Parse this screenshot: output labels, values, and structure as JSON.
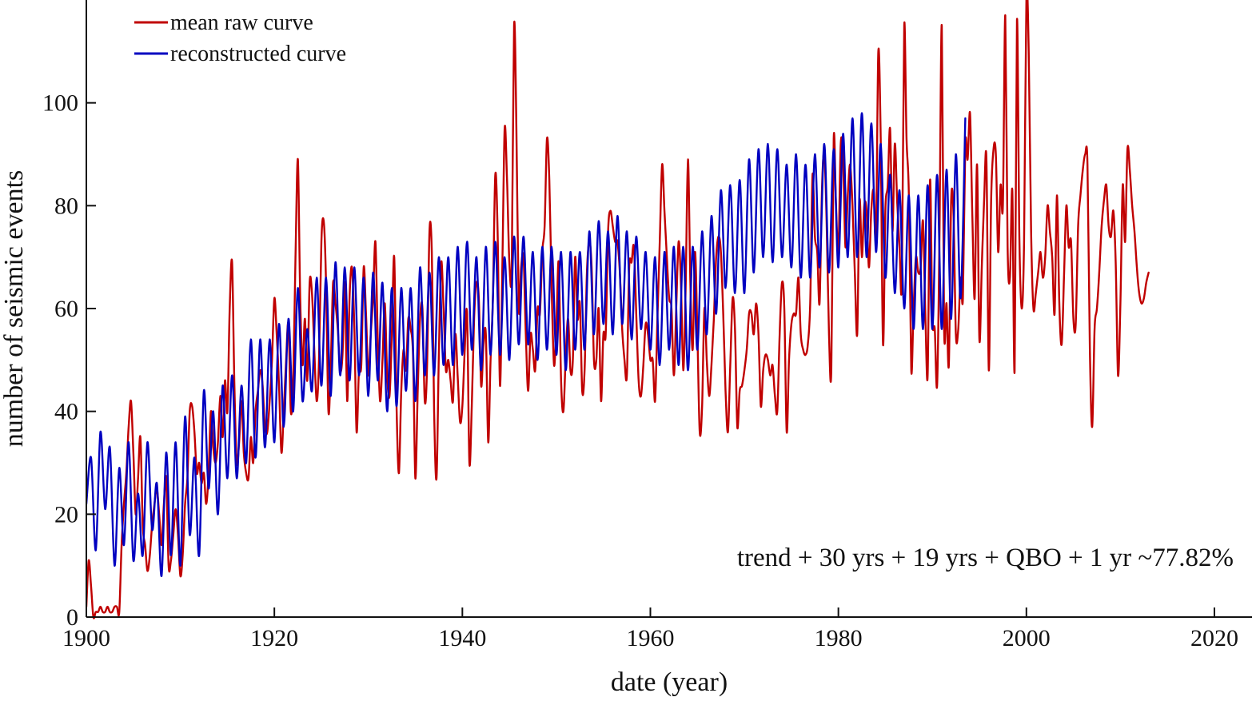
{
  "chart_data": {
    "type": "line",
    "title": "",
    "xlabel": "date (year)",
    "ylabel": "number of seismic events",
    "xlim": [
      1900,
      2024
    ],
    "ylim": [
      0,
      120
    ],
    "xticks": [
      1900,
      1920,
      1940,
      1960,
      1980,
      2000,
      2020
    ],
    "yticks": [
      0,
      20,
      40,
      60,
      80,
      100
    ],
    "grid": false,
    "legend_position": "top-left",
    "annotation": "trend + 30 yrs + 19 yrs + QBO + 1 yr ~77.82%",
    "series": [
      {
        "name": "mean raw curve",
        "color": "#c00000",
        "x_start": 1900,
        "x_step": 0.25,
        "values": [
          2,
          11,
          6,
          0,
          1,
          1,
          2,
          1,
          1,
          2,
          1,
          1,
          2,
          2,
          1,
          14,
          22,
          28,
          37,
          42,
          32,
          20,
          27,
          35,
          18,
          14,
          9,
          12,
          18,
          22,
          25,
          20,
          14,
          22,
          27,
          10,
          11,
          16,
          21,
          16,
          8,
          12,
          22,
          27,
          40,
          41,
          36,
          28,
          30,
          26,
          28,
          22,
          28,
          40,
          33,
          30,
          34,
          43,
          35,
          46,
          40,
          60,
          69,
          45,
          30,
          34,
          42,
          32,
          28,
          27,
          35,
          30,
          40,
          44,
          48,
          45,
          37,
          36,
          42,
          50,
          62,
          55,
          45,
          32,
          40,
          50,
          57,
          40,
          46,
          70,
          89,
          62,
          49,
          58,
          46,
          65,
          63,
          52,
          42,
          50,
          73,
          77,
          65,
          40,
          49,
          65,
          61,
          56,
          48,
          51,
          65,
          42,
          62,
          68,
          57,
          36,
          48,
          49,
          68,
          59,
          47,
          55,
          62,
          73,
          54,
          42,
          50,
          61,
          47,
          43,
          55,
          70,
          41,
          28,
          44,
          52,
          48,
          58,
          56,
          51,
          27,
          44,
          58,
          60,
          42,
          49,
          75,
          71,
          40,
          27,
          51,
          69,
          60,
          48,
          50,
          46,
          42,
          55,
          47,
          38,
          41,
          52,
          59,
          30,
          41,
          58,
          65,
          62,
          45,
          53,
          55,
          34,
          50,
          62,
          86,
          75,
          45,
          68,
          95,
          85,
          69,
          68,
          115,
          95,
          60,
          68,
          70,
          55,
          44,
          55,
          52,
          48,
          60,
          59,
          71,
          76,
          93,
          85,
          64,
          49,
          57,
          69,
          46,
          40,
          51,
          58,
          48,
          50,
          70,
          58,
          61,
          44,
          48,
          67,
          73,
          68,
          50,
          50,
          60,
          42,
          55,
          55,
          75,
          79,
          76,
          73,
          73,
          67,
          56,
          50,
          47,
          68,
          69,
          72,
          59,
          46,
          43,
          49,
          57,
          55,
          50,
          50,
          42,
          58,
          73,
          88,
          79,
          70,
          62,
          60,
          47,
          60,
          73,
          65,
          48,
          64,
          89,
          65,
          52,
          71,
          55,
          36,
          41,
          60,
          50,
          43,
          49,
          58,
          70,
          74,
          71,
          59,
          44,
          36,
          49,
          62,
          56,
          37,
          44,
          45,
          48,
          52,
          59,
          59,
          55,
          61,
          55,
          41,
          48,
          51,
          50,
          47,
          49,
          43,
          40,
          55,
          65,
          60,
          36,
          50,
          57,
          59,
          59,
          66,
          55,
          52,
          51,
          53,
          61,
          86,
          74,
          71,
          61,
          83,
          90,
          77,
          55,
          48,
          93,
          80,
          71,
          92,
          89,
          72,
          82,
          88,
          80,
          67,
          55,
          81,
          70,
          80,
          79,
          68,
          79,
          83,
          74,
          110,
          93,
          53,
          79,
          84,
          95,
          75,
          92,
          81,
          72,
          65,
          115,
          93,
          82,
          48,
          60,
          70,
          67,
          68,
          77,
          59,
          47,
          85,
          58,
          56,
          45,
          73,
          115,
          56,
          61,
          49,
          81,
          78,
          55,
          56,
          66,
          62,
          92,
          89,
          98,
          78,
          62,
          88,
          54,
          68,
          81,
          89,
          48,
          81,
          91,
          90,
          71,
          84,
          80,
          117,
          72,
          66,
          83,
          48,
          116,
          74,
          60,
          73,
          120,
          110,
          75,
          60,
          63,
          67,
          71,
          66,
          70,
          80,
          75,
          70,
          59,
          82,
          61,
          53,
          66,
          80,
          72,
          73,
          58,
          57,
          76,
          82,
          87,
          90,
          88,
          52,
          37,
          56,
          60,
          67,
          76,
          81,
          84,
          76,
          74,
          79,
          69,
          47,
          61,
          84,
          73,
          91,
          87,
          80,
          75,
          68,
          63,
          61,
          62,
          65,
          67
        ]
      },
      {
        "name": "reconstructed curve",
        "color": "#0000c0",
        "x_start": 1900,
        "x_step": 0.5,
        "values": [
          22,
          31,
          13,
          36,
          21,
          33,
          10,
          29,
          14,
          34,
          11,
          24,
          12,
          34,
          17,
          26,
          8,
          32,
          12,
          34,
          10,
          39,
          16,
          31,
          12,
          44,
          25,
          40,
          20,
          45,
          27,
          47,
          27,
          45,
          30,
          54,
          31,
          54,
          33,
          54,
          34,
          57,
          37,
          58,
          40,
          64,
          42,
          56,
          44,
          66,
          45,
          66,
          43,
          69,
          47,
          68,
          46,
          68,
          47,
          66,
          43,
          67,
          46,
          65,
          40,
          64,
          41,
          64,
          44,
          64,
          42,
          68,
          47,
          67,
          47,
          70,
          49,
          70,
          49,
          72,
          51,
          73,
          52,
          70,
          48,
          72,
          51,
          73,
          51,
          70,
          50,
          74,
          53,
          74,
          53,
          71,
          50,
          72,
          52,
          72,
          51,
          71,
          48,
          71,
          52,
          71,
          52,
          75,
          55,
          77,
          57,
          75,
          55,
          78,
          57,
          75,
          54,
          74,
          56,
          71,
          52,
          70,
          49,
          71,
          52,
          72,
          49,
          72,
          48,
          72,
          52,
          75,
          55,
          78,
          59,
          83,
          64,
          84,
          63,
          85,
          63,
          89,
          67,
          91,
          70,
          92,
          69,
          91,
          70,
          88,
          68,
          90,
          66,
          88,
          66,
          90,
          68,
          92,
          67,
          91,
          68,
          94,
          70,
          97,
          70,
          98,
          70,
          96,
          71,
          92,
          66,
          86,
          63,
          83,
          60,
          82,
          56,
          82,
          56,
          84,
          56,
          86,
          56,
          87,
          58,
          90,
          62,
          97
        ]
      }
    ]
  }
}
